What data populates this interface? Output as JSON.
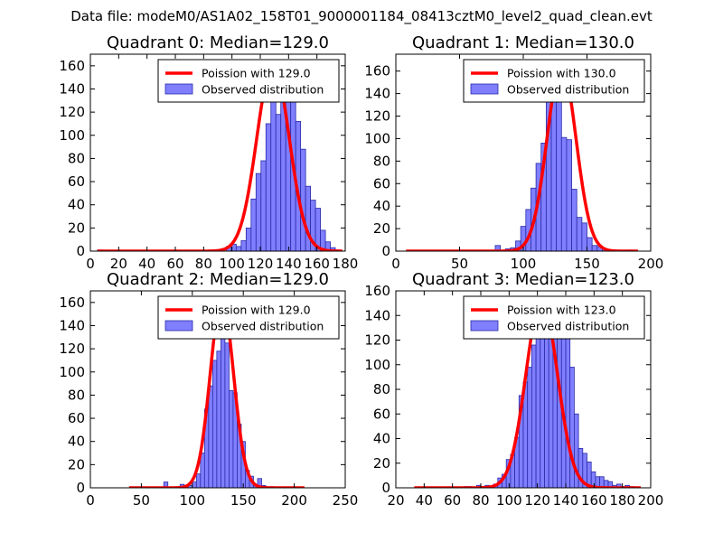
{
  "figure_title": "Data file: modeM0/AS1A02_158T01_9000001184_08413cztM0_level2_quad_clean.evt",
  "colors": {
    "model_line": "#ff0000",
    "bar_fill": "#7f7fff",
    "bar_edge": "#2a2aa8",
    "frame": "#000000"
  },
  "chart_data": [
    {
      "type": "bar",
      "title": "Quadrant 0: Median=129.0",
      "xlim": [
        0,
        180
      ],
      "ylim": [
        0,
        170
      ],
      "xticks": [
        0,
        20,
        40,
        60,
        80,
        100,
        120,
        140,
        160,
        180
      ],
      "xtick_labels": [
        "0",
        "20",
        "40",
        "60",
        "80",
        "100",
        "120",
        "140",
        "160",
        "180"
      ],
      "yticks": [
        0,
        20,
        40,
        60,
        80,
        100,
        120,
        140,
        160
      ],
      "ytick_labels": [
        "0",
        "20",
        "40",
        "60",
        "80",
        "100",
        "120",
        "140",
        "160"
      ],
      "legend": [
        "Poission with 129.0",
        "Observed distribution"
      ],
      "median": 129.0,
      "model_peak": 162,
      "model_sigma": 11.4,
      "model_xrange": [
        5,
        178
      ],
      "bins": {
        "edges_start": 5,
        "bin_width": 3.5,
        "counts": [
          1,
          0,
          0,
          0,
          0,
          0,
          0,
          0,
          0,
          0,
          0,
          0,
          0,
          0,
          0,
          0,
          0,
          0,
          0,
          0,
          0,
          0,
          0,
          0,
          0,
          0,
          4,
          6,
          4,
          9,
          20,
          45,
          67,
          78,
          110,
          158,
          118,
          137,
          148,
          158,
          112,
          88,
          56,
          44,
          37,
          18,
          8,
          3,
          1,
          0,
          3
        ]
      }
    },
    {
      "type": "bar",
      "title": "Quadrant 1: Median=130.0",
      "xlim": [
        0,
        200
      ],
      "ylim": [
        0,
        175
      ],
      "xticks": [
        0,
        50,
        100,
        150,
        200
      ],
      "xtick_labels": [
        "0",
        "50",
        "100",
        "150",
        "200"
      ],
      "yticks": [
        0,
        20,
        40,
        60,
        80,
        100,
        120,
        140,
        160
      ],
      "ytick_labels": [
        "0",
        "20",
        "40",
        "60",
        "80",
        "100",
        "120",
        "140",
        "160"
      ],
      "legend": [
        "Poission with 130.0",
        "Observed distribution"
      ],
      "median": 130.0,
      "model_peak": 165,
      "model_sigma": 11.4,
      "model_xrange": [
        8,
        190
      ],
      "bins": {
        "edges_start": 78,
        "bin_width": 4,
        "counts": [
          5,
          0,
          2,
          3,
          9,
          22,
          37,
          56,
          78,
          96,
          147,
          163,
          142,
          101,
          99,
          55,
          30,
          25,
          12,
          5,
          4,
          2,
          1,
          0,
          0,
          0,
          1,
          0
        ]
      }
    },
    {
      "type": "bar",
      "title": "Quadrant 2: Median=129.0",
      "xlim": [
        0,
        250
      ],
      "ylim": [
        0,
        170
      ],
      "xticks": [
        0,
        50,
        100,
        150,
        200,
        250
      ],
      "xtick_labels": [
        "0",
        "50",
        "100",
        "150",
        "200",
        "250"
      ],
      "yticks": [
        0,
        20,
        40,
        60,
        80,
        100,
        120,
        140,
        160
      ],
      "ytick_labels": [
        "0",
        "20",
        "40",
        "60",
        "80",
        "100",
        "120",
        "140",
        "160"
      ],
      "legend": [
        "Poission with 129.0",
        "Observed distribution"
      ],
      "median": 129.0,
      "model_peak": 163,
      "model_sigma": 11.4,
      "model_xrange": [
        38,
        210
      ],
      "bins": {
        "edges_start": 72,
        "bin_width": 4,
        "counts": [
          5,
          0,
          0,
          0,
          3,
          2,
          2,
          5,
          12,
          30,
          68,
          88,
          110,
          118,
          135,
          125,
          84,
          82,
          55,
          40,
          15,
          10,
          3,
          8,
          2,
          0,
          1
        ]
      }
    },
    {
      "type": "bar",
      "title": "Quadrant 3: Median=123.0",
      "xlim": [
        20,
        200
      ],
      "ylim": [
        0,
        160
      ],
      "xticks": [
        20,
        40,
        60,
        80,
        100,
        120,
        140,
        160,
        180,
        200
      ],
      "xtick_labels": [
        "20",
        "40",
        "60",
        "80",
        "100",
        "120",
        "140",
        "160",
        "180",
        "200"
      ],
      "yticks": [
        0,
        20,
        40,
        60,
        80,
        100,
        120,
        140,
        160
      ],
      "ytick_labels": [
        "0",
        "20",
        "40",
        "60",
        "80",
        "100",
        "120",
        "140",
        "160"
      ],
      "legend": [
        "Poission with 123.0",
        "Observed distribution"
      ],
      "median": 123.0,
      "model_peak": 153,
      "model_sigma": 11.1,
      "model_xrange": [
        33,
        193
      ],
      "bins": {
        "edges_start": 68,
        "bin_width": 3,
        "counts": [
          1,
          1,
          0,
          2,
          1,
          2,
          1,
          3,
          8,
          11,
          23,
          27,
          41,
          75,
          86,
          98,
          116,
          128,
          146,
          147,
          150,
          153,
          150,
          130,
          122,
          98,
          60,
          32,
          28,
          21,
          13,
          9,
          9,
          6,
          5,
          2,
          3,
          1,
          2,
          1
        ]
      }
    }
  ]
}
